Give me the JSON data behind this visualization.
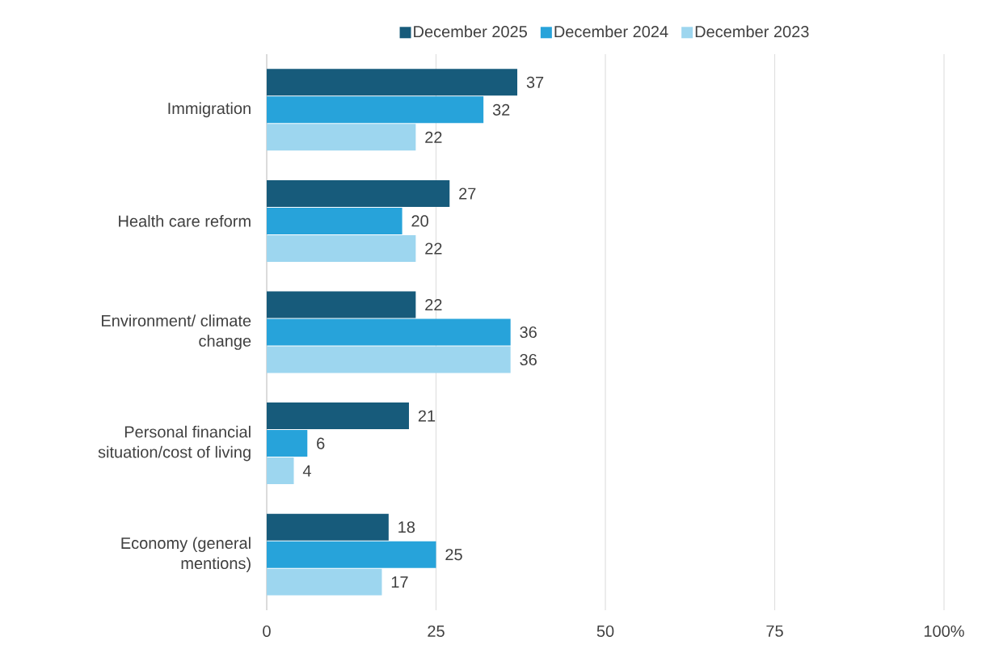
{
  "chart_data": {
    "type": "bar",
    "orientation": "horizontal",
    "categories": [
      "Immigration",
      "Health care reform",
      "Environment/ climate change",
      "Personal financial situation/cost of living",
      "Economy (general mentions)"
    ],
    "series": [
      {
        "name": "December 2025",
        "color": "#175b7b",
        "values": [
          37,
          27,
          22,
          21,
          18
        ]
      },
      {
        "name": "December 2024",
        "color": "#27a3da",
        "values": [
          32,
          20,
          36,
          6,
          25
        ]
      },
      {
        "name": "December 2023",
        "color": "#9dd6ef",
        "values": [
          22,
          22,
          36,
          4,
          17
        ]
      }
    ],
    "xlim": [
      0,
      100
    ],
    "xticks": [
      0,
      25,
      50,
      75,
      {
        "value": 100,
        "label": "100%"
      }
    ],
    "grid": "x",
    "legend": "top",
    "data_labels": true
  }
}
